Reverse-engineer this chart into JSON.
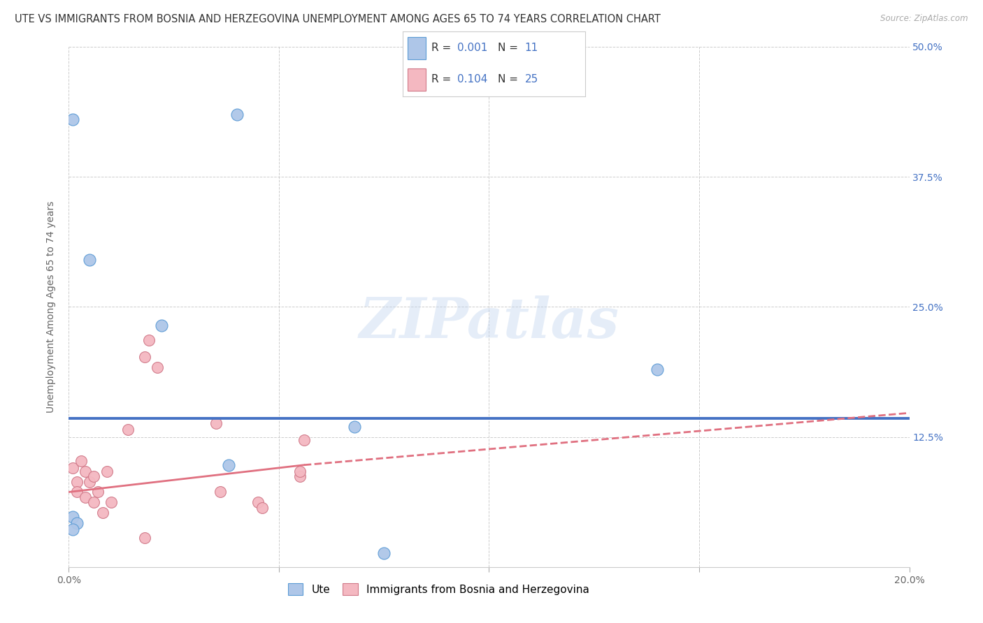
{
  "title": "UTE VS IMMIGRANTS FROM BOSNIA AND HERZEGOVINA UNEMPLOYMENT AMONG AGES 65 TO 74 YEARS CORRELATION CHART",
  "source": "Source: ZipAtlas.com",
  "ylabel": "Unemployment Among Ages 65 to 74 years",
  "xlim": [
    0.0,
    0.2
  ],
  "ylim": [
    0.0,
    0.5
  ],
  "xticks": [
    0.0,
    0.05,
    0.1,
    0.15,
    0.2
  ],
  "xticklabels": [
    "0.0%",
    "",
    "",
    "",
    "20.0%"
  ],
  "yticks": [
    0.0,
    0.125,
    0.25,
    0.375,
    0.5
  ],
  "yticklabels_right": [
    "",
    "12.5%",
    "25.0%",
    "37.5%",
    "50.0%"
  ],
  "ute_color": "#aec6e8",
  "ute_edge_color": "#5b9bd5",
  "bosnia_color": "#f4b8c1",
  "bosnia_edge_color": "#d07888",
  "ute_R": "0.001",
  "ute_N": "11",
  "bosnia_R": "0.104",
  "bosnia_N": "25",
  "trend_blue_color": "#4472c4",
  "trend_blue_y": 0.143,
  "trend_pink_solid_x1": 0.0,
  "trend_pink_solid_y1": 0.072,
  "trend_pink_solid_x2": 0.056,
  "trend_pink_solid_y2": 0.098,
  "trend_pink_dash_x1": 0.056,
  "trend_pink_dash_y1": 0.098,
  "trend_pink_dash_x2": 0.2,
  "trend_pink_dash_y2": 0.148,
  "trend_pink_color": "#e07080",
  "watermark_text": "ZIPatlas",
  "ute_points": [
    [
      0.001,
      0.43
    ],
    [
      0.005,
      0.295
    ],
    [
      0.04,
      0.435
    ],
    [
      0.001,
      0.048
    ],
    [
      0.002,
      0.042
    ],
    [
      0.001,
      0.036
    ],
    [
      0.022,
      0.232
    ],
    [
      0.14,
      0.19
    ],
    [
      0.068,
      0.135
    ],
    [
      0.038,
      0.098
    ],
    [
      0.075,
      0.013
    ]
  ],
  "bosnia_points": [
    [
      0.001,
      0.095
    ],
    [
      0.002,
      0.082
    ],
    [
      0.002,
      0.072
    ],
    [
      0.003,
      0.102
    ],
    [
      0.004,
      0.067
    ],
    [
      0.004,
      0.092
    ],
    [
      0.005,
      0.082
    ],
    [
      0.006,
      0.087
    ],
    [
      0.006,
      0.062
    ],
    [
      0.007,
      0.072
    ],
    [
      0.008,
      0.052
    ],
    [
      0.009,
      0.092
    ],
    [
      0.01,
      0.062
    ],
    [
      0.014,
      0.132
    ],
    [
      0.018,
      0.202
    ],
    [
      0.019,
      0.218
    ],
    [
      0.021,
      0.192
    ],
    [
      0.035,
      0.138
    ],
    [
      0.036,
      0.072
    ],
    [
      0.045,
      0.062
    ],
    [
      0.046,
      0.057
    ],
    [
      0.055,
      0.087
    ],
    [
      0.055,
      0.092
    ],
    [
      0.056,
      0.122
    ],
    [
      0.018,
      0.028
    ]
  ],
  "background_color": "#ffffff",
  "grid_color": "#cccccc",
  "title_fontsize": 10.5,
  "value_text_color": "#4472c4",
  "label_text_color": "#444444"
}
